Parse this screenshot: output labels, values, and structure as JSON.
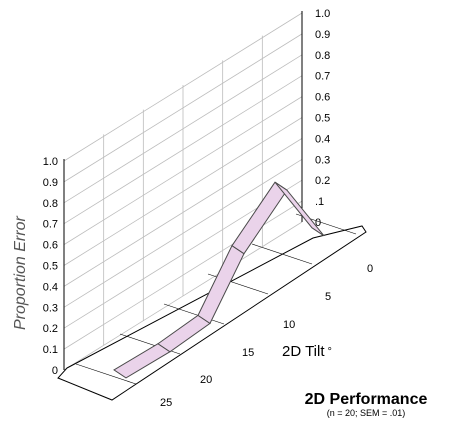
{
  "chart_data": {
    "type": "line",
    "title": "2D Performance",
    "subtitle": "(n = 20; SEM = .01)",
    "xlabel": "2D Tilt",
    "xlabel_suffix": "°",
    "ylabel": "Proportion Error",
    "categories": [
      "0",
      "5",
      "10",
      "15",
      "20",
      "25"
    ],
    "x": [
      0,
      5,
      10,
      15,
      20,
      25
    ],
    "series": [
      {
        "values": [
          0.02,
          0.6,
          0.26,
          0.07,
          0.03,
          0.01
        ],
        "color": "#ead3ea",
        "stroke": "#4a4a4a"
      }
    ],
    "ylim": [
      0,
      1.0
    ],
    "yticks_left": [
      "0",
      "0.1",
      "0.2",
      "0.3",
      "0.4",
      "0.5",
      "0.6",
      "0.7",
      "0.8",
      "0.9",
      "1.0"
    ],
    "yticks_right": [
      "0",
      ".1",
      "0.2",
      "0.3",
      "0.4",
      "0.5",
      "0.6",
      "0.7",
      "0.8",
      "0.9",
      "1.0"
    ],
    "grid": true
  }
}
